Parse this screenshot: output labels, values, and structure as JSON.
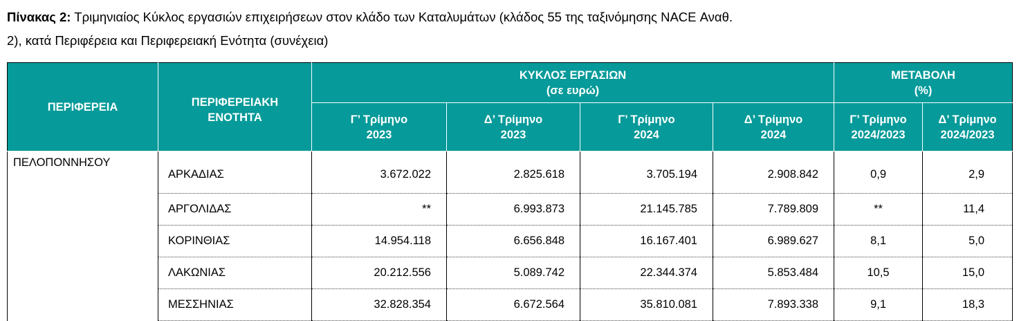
{
  "title": {
    "label": "Πίνακας 2:",
    "line1": "Τριμηνιαίος Κύκλος εργασιών επιχειρήσεων στον κλάδο των Καταλυμάτων (κλάδος 55 της ταξινόμησης NACE Αναθ.",
    "line2": "2), κατά Περιφέρεια και Περιφερειακή Ενότητα (συνέχεια)"
  },
  "table": {
    "header": {
      "region": "ΠΕΡΙΦΕΡΕΙΑ",
      "unit": [
        "ΠΕΡΙΦΕΡΕΙΑΚΗ",
        "ΕΝΟΤΗΤΑ"
      ],
      "turnover": [
        "ΚΥΚΛΟΣ ΕΡΓΑΣΙΩΝ",
        "(σε ευρώ)"
      ],
      "change": [
        "ΜΕΤΑΒΟΛΗ",
        "(%)"
      ],
      "columns": [
        [
          "Γ’ Τρίμηνο",
          "2023"
        ],
        [
          "Δ’ Τρίμηνο",
          "2023"
        ],
        [
          "Γ’ Τρίμηνο",
          "2024"
        ],
        [
          "Δ’ Τρίμηνο",
          "2024"
        ],
        [
          "Γ’ Τρίμηνο",
          "2024/2023"
        ],
        [
          "Δ’ Τρίμηνο",
          "2024/2023"
        ]
      ]
    },
    "region": "ΠΕΛΟΠΟΝΝΗΣΟΥ",
    "rows": [
      [
        "ΑΡΚΑΔΙΑΣ",
        "3.672.022",
        "2.825.618",
        "3.705.194",
        "2.908.842",
        "0,9",
        "2,9"
      ],
      [
        "ΑΡΓΟΛΙΔΑΣ",
        "**",
        "6.993.873",
        "21.145.785",
        "7.789.809",
        "**",
        "11,4"
      ],
      [
        "ΚΟΡΙΝΘΙΑΣ",
        "14.954.118",
        "6.656.848",
        "16.167.401",
        "6.989.627",
        "8,1",
        "5,0"
      ],
      [
        "ΛΑΚΩΝΙΑΣ",
        "20.212.556",
        "5.089.742",
        "22.344.374",
        "5.853.484",
        "10,5",
        "15,0"
      ],
      [
        "ΜΕΣΣΗΝΙΑΣ",
        "32.828.354",
        "6.672.564",
        "35.810.081",
        "7.893.338",
        "9,1",
        "18,3"
      ]
    ]
  }
}
